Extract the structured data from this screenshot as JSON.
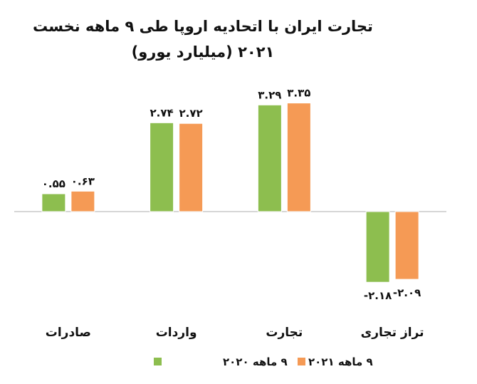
{
  "chart_data": {
    "type": "bar",
    "title": "تجارت ایران با اتحادیه اروپا طی ۹ ماهه نخست",
    "subtitle": "۲۰۲۱ (میلیارد یورو)",
    "categories": [
      "صادرات",
      "واردات",
      "تجارت",
      "تراز تجاری"
    ],
    "series": [
      {
        "name": "۹ ماهه ۲۰۲۰",
        "color": "#8dbe4f",
        "values": [
          0.55,
          2.74,
          3.29,
          -2.18
        ],
        "labels": [
          "۰.۵۵",
          "۲.۷۴",
          "۳.۲۹",
          "-۲.۱۸"
        ]
      },
      {
        "name": "۹ ماهه ۲۰۲۱",
        "color": "#f59a55",
        "values": [
          0.63,
          2.72,
          3.35,
          -2.09
        ],
        "labels": [
          "۰.۶۳",
          "۲.۷۲",
          "۳.۳۵",
          "-۲.۰۹"
        ]
      }
    ],
    "ylim": [
      -2.5,
      3.5
    ],
    "grid": false,
    "legend": "bottom"
  }
}
